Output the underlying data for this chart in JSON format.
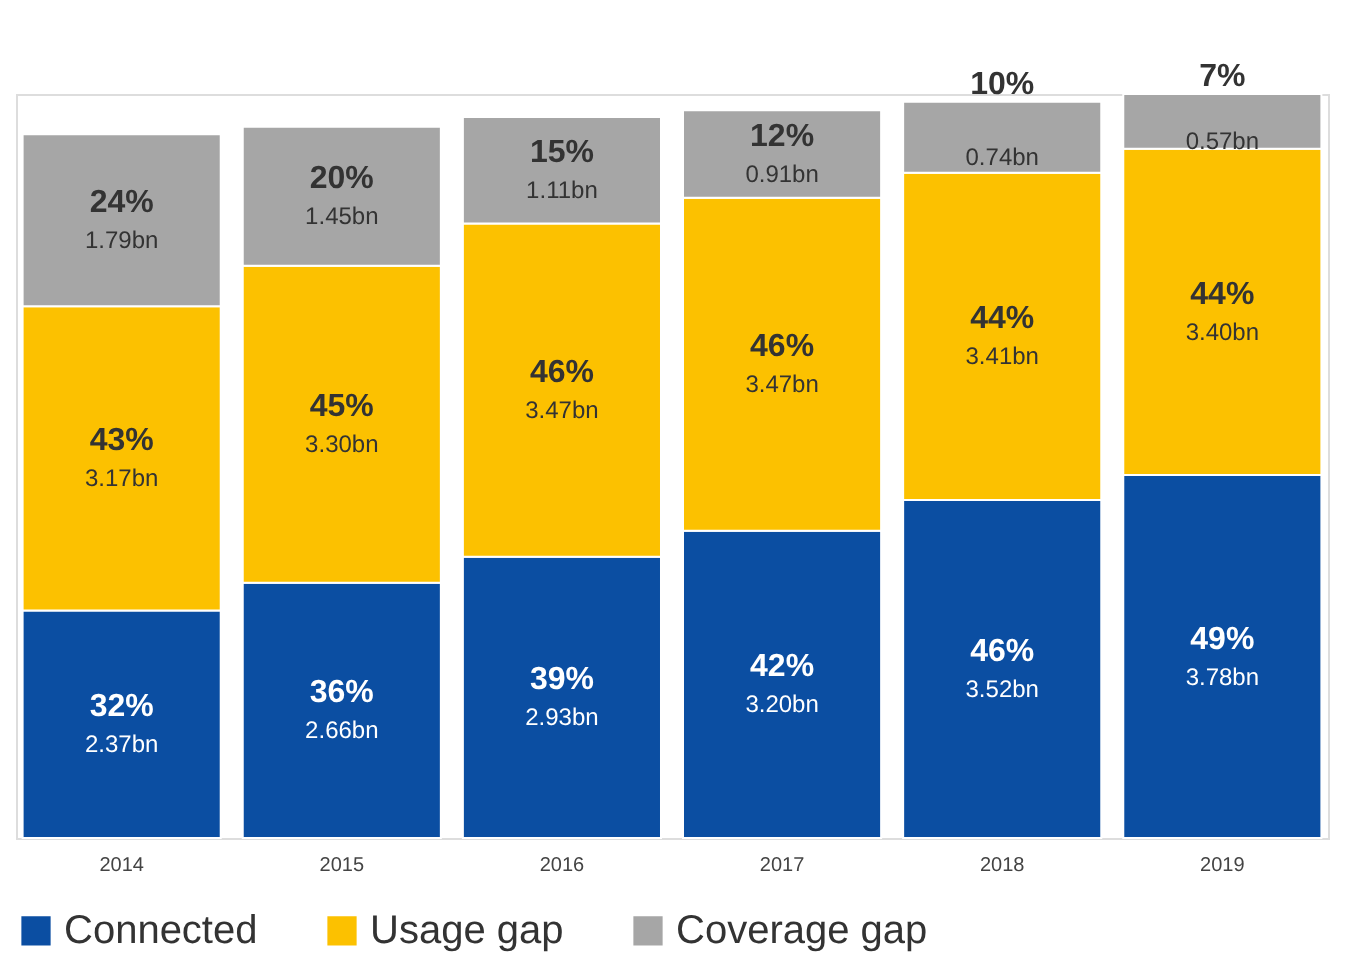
{
  "chart_data": {
    "type": "bar",
    "stacked": true,
    "categories": [
      "2014",
      "2015",
      "2016",
      "2017",
      "2018",
      "2019"
    ],
    "series": [
      {
        "name": "Connected",
        "color": "#0b4ea2",
        "values": [
          2.37,
          2.66,
          2.93,
          3.2,
          3.52,
          3.78
        ],
        "value_labels": [
          "2.37bn",
          "2.66bn",
          "2.93bn",
          "3.20bn",
          "3.52bn",
          "3.78bn"
        ]
      },
      {
        "name": "Usage gap",
        "color": "#fcc100",
        "values": [
          3.17,
          3.3,
          3.47,
          3.47,
          3.41,
          3.4
        ],
        "value_labels": [
          "3.17bn",
          "3.30bn",
          "3.47bn",
          "3.47bn",
          "3.41bn",
          "3.40bn"
        ]
      },
      {
        "name": "Coverage gap",
        "color": "#a6a6a6",
        "values": [
          1.79,
          1.45,
          1.11,
          0.91,
          0.74,
          0.57
        ],
        "value_labels": [
          "1.79bn",
          "1.45bn",
          "1.11bn",
          "0.91bn",
          "0.74bn",
          "0.57bn"
        ]
      }
    ],
    "annotations": [
      "32%",
      "36%",
      "39%",
      "42%",
      "46%",
      "49%",
      "43%",
      "45%",
      "46%",
      "46%",
      "44%",
      "44%",
      "24%",
      "20%",
      "15%",
      "12%",
      "10%",
      "7%"
    ],
    "legend": "bottom",
    "grid": false,
    "tick_labels": "x"
  }
}
